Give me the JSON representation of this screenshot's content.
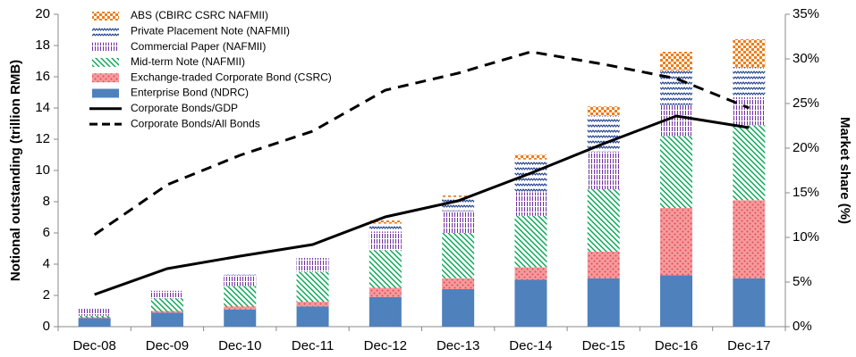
{
  "chart_data": {
    "type": "bar",
    "y_label": "Notional outstanding (trillion RMB)",
    "y2_label": "Market share (%)",
    "categories": [
      "Dec-08",
      "Dec-09",
      "Dec-10",
      "Dec-11",
      "Dec-12",
      "Dec-13",
      "Dec-14",
      "Dec-15",
      "Dec-16",
      "Dec-17"
    ],
    "stacked": true,
    "series": [
      {
        "name": "Enterprise Bond (NDRC)",
        "color": "#4f81bd",
        "pattern": "solid",
        "values": [
          0.55,
          0.9,
          1.1,
          1.3,
          1.9,
          2.4,
          3.0,
          3.1,
          3.3,
          3.1
        ]
      },
      {
        "name": "Exchange-traded Corporate Bond (CSRC)",
        "color": "#e8484f",
        "pattern": "dots",
        "values": [
          0.05,
          0.1,
          0.2,
          0.3,
          0.6,
          0.7,
          0.8,
          1.7,
          4.3,
          5.0
        ]
      },
      {
        "name": "Mid-term Note (NAFMII)",
        "color": "#00a550",
        "pattern": "diagonal",
        "values": [
          0.1,
          0.8,
          1.3,
          1.9,
          2.4,
          2.9,
          3.3,
          4.0,
          4.6,
          4.8
        ]
      },
      {
        "name": "Commercial Paper (NAFMII)",
        "color": "#7030a0",
        "pattern": "vertical",
        "values": [
          0.45,
          0.5,
          0.7,
          0.9,
          1.2,
          1.4,
          1.5,
          2.4,
          2.0,
          1.8
        ]
      },
      {
        "name": "Private Placement Note (NAFMII)",
        "color": "#1f3f8a",
        "pattern": "zigzag",
        "values": [
          0,
          0,
          0.1,
          0.1,
          0.5,
          0.9,
          2.1,
          2.3,
          2.2,
          1.9
        ]
      },
      {
        "name": "ABS (CBIRC CSRC NAFMII)",
        "color": "#f07d1a",
        "pattern": "checker",
        "values": [
          0,
          0,
          0,
          0,
          0.2,
          0.1,
          0.3,
          0.6,
          1.2,
          1.8
        ]
      },
      {
        "name": "Corporate Bonds/GDP",
        "type": "line",
        "axis": "y2",
        "color": "#000000",
        "dash": false,
        "values": [
          3.6,
          6.5,
          7.9,
          9.2,
          12.3,
          14.1,
          17.2,
          20.5,
          23.6,
          22.3
        ]
      },
      {
        "name": "Corporate Bonds/All Bonds",
        "type": "line",
        "axis": "y2",
        "color": "#000000",
        "dash": true,
        "values": [
          10.3,
          15.9,
          19.2,
          21.9,
          26.5,
          28.4,
          30.8,
          29.4,
          27.8,
          24.5
        ]
      }
    ],
    "ylim": [
      0,
      20
    ],
    "yticks": [
      0,
      2,
      4,
      6,
      8,
      10,
      12,
      14,
      16,
      18,
      20
    ],
    "y2lim": [
      0,
      35
    ],
    "y2ticks": [
      {
        "value": 0,
        "label": "0%"
      },
      {
        "value": 5,
        "label": "5%"
      },
      {
        "value": 10,
        "label": "10%"
      },
      {
        "value": 15,
        "label": "15%"
      },
      {
        "value": 20,
        "label": "20%"
      },
      {
        "value": 25,
        "label": "25%"
      },
      {
        "value": 30,
        "label": "30%"
      },
      {
        "value": 35,
        "label": "35%"
      }
    ],
    "legend": "upper left",
    "grid": false
  }
}
